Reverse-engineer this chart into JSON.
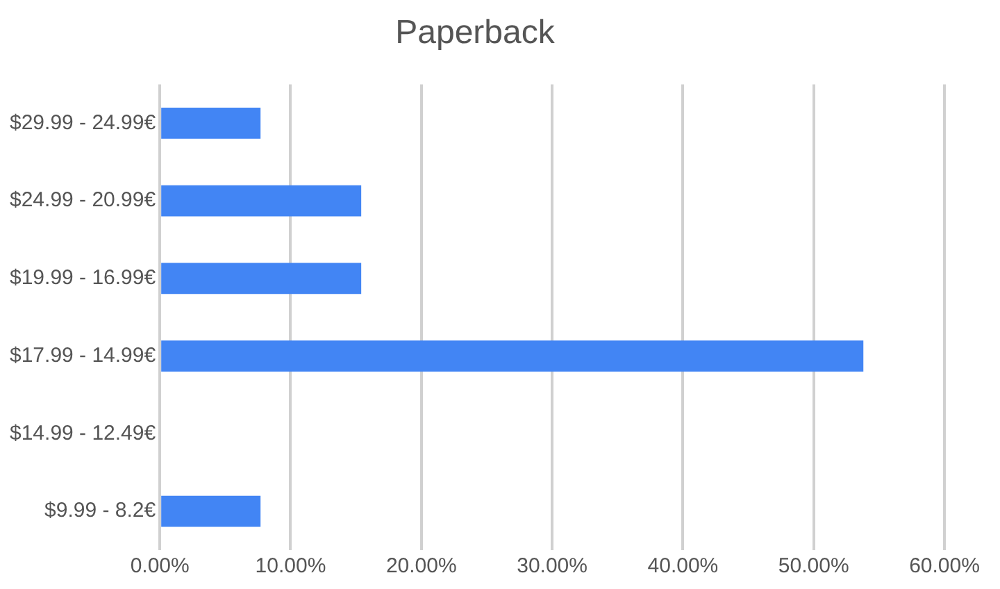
{
  "chart_data": {
    "type": "bar",
    "orientation": "horizontal",
    "title": "Paperback",
    "categories": [
      "$29.99 - 24.99€",
      "$24.99 - 20.99€",
      "$19.99 - 16.99€",
      "$17.99 - 14.99€",
      "$14.99 - 12.49€",
      "$9.99 - 8.2€"
    ],
    "values": [
      7.7,
      15.4,
      15.4,
      53.8,
      0,
      7.7
    ],
    "color": "#4285f4",
    "xlim": [
      0,
      60
    ],
    "xticks": [
      {
        "value": 0,
        "label": "0.00%"
      },
      {
        "value": 10,
        "label": "10.00%"
      },
      {
        "value": 20,
        "label": "20.00%"
      },
      {
        "value": 30,
        "label": "30.00%"
      },
      {
        "value": 40,
        "label": "40.00%"
      },
      {
        "value": 50,
        "label": "50.00%"
      },
      {
        "value": 60,
        "label": "60.00%"
      }
    ],
    "grid": "x",
    "legend": false
  }
}
